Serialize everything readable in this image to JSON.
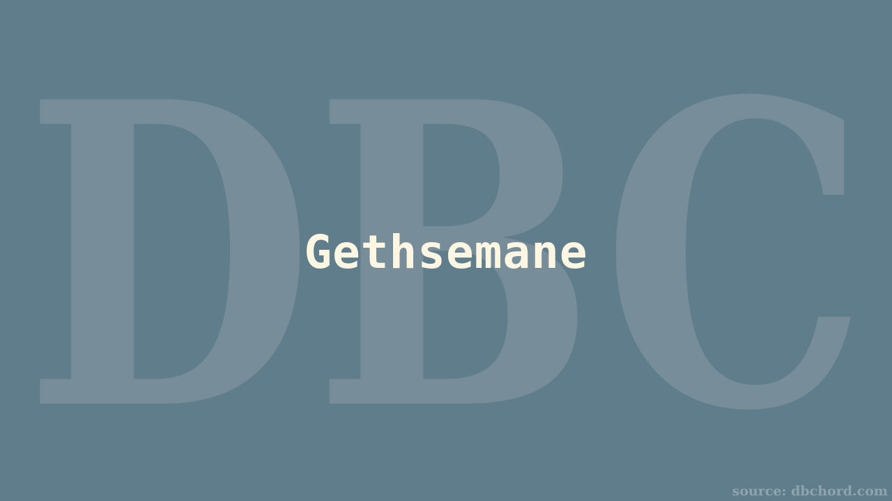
{
  "song": {
    "title": "Gethsemane"
  },
  "watermark": {
    "text": "DBC",
    "color": "#778d99"
  },
  "footer": {
    "source": "source: dbchord.com"
  },
  "colors": {
    "background": "#607d8b",
    "title": "#fdf6e3",
    "source": "#8fa4ae"
  }
}
